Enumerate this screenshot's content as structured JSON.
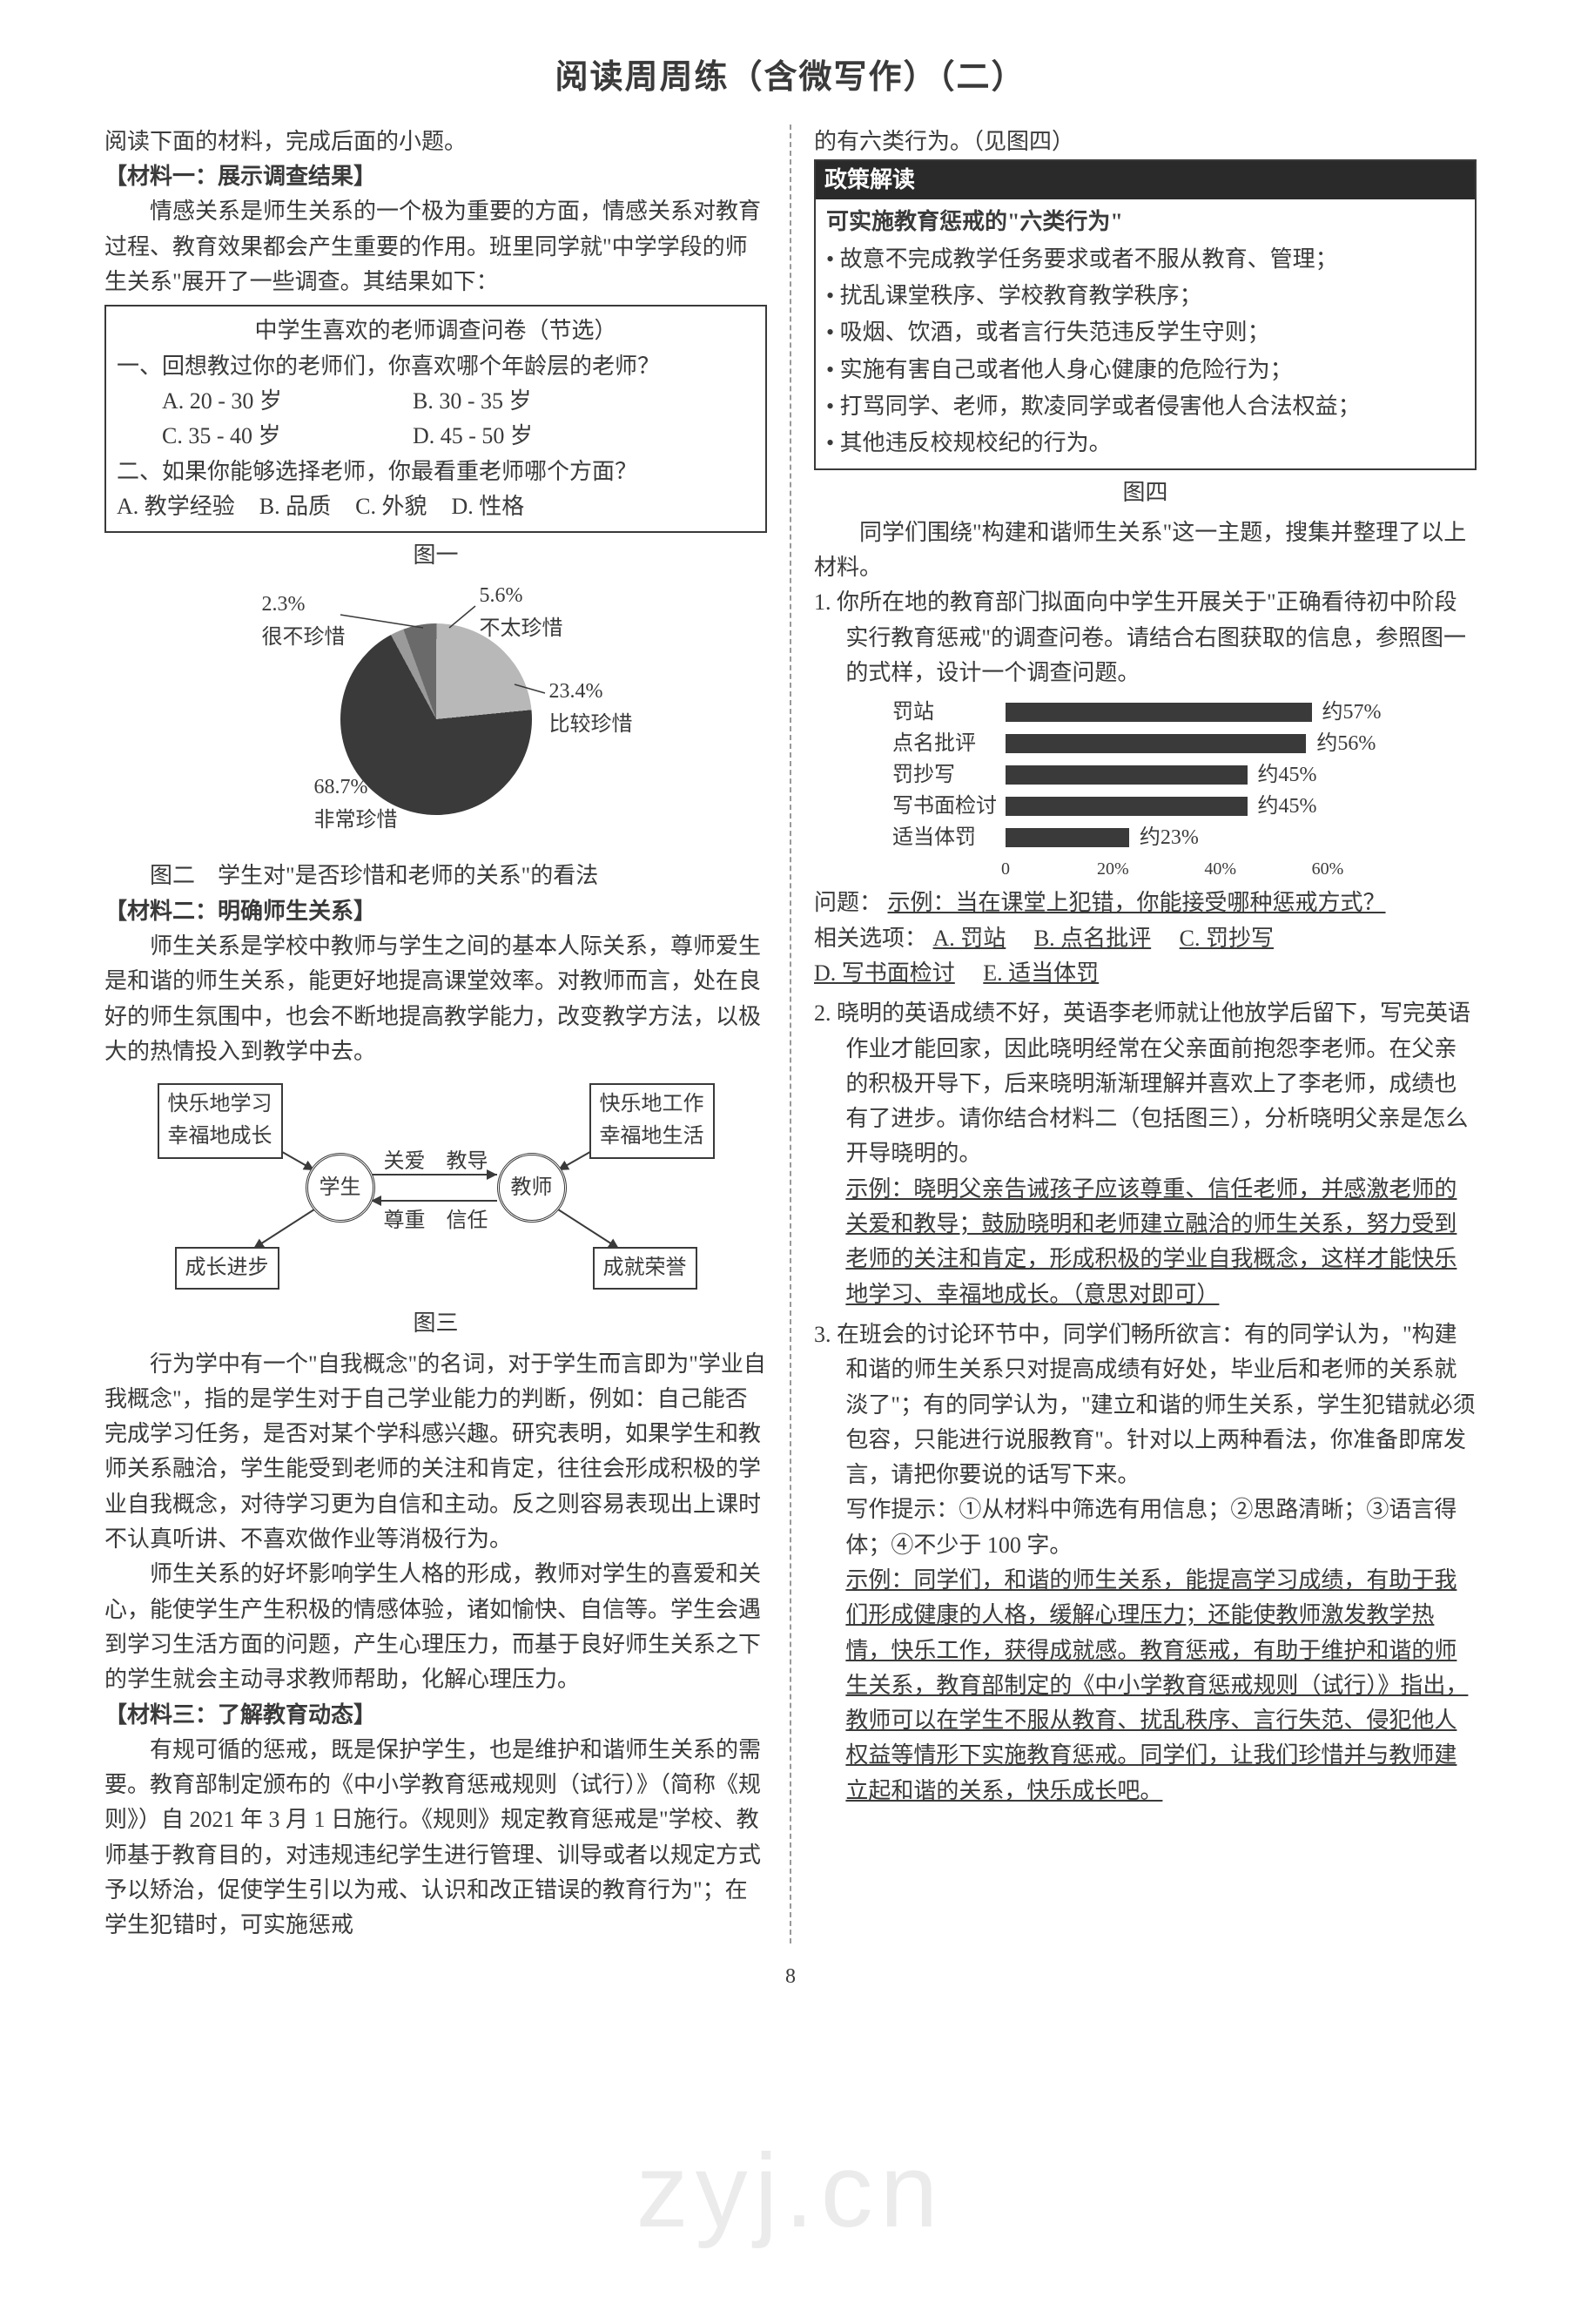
{
  "title": "阅读周周练（含微写作）（二）",
  "intro": "阅读下面的材料，完成后面的小题。",
  "mat1": {
    "head": "【材料一：展示调查结果】",
    "p1": "情感关系是师生关系的一个极为重要的方面，情感关系对教育过程、教育效果都会产生重要的作用。班里同学就\"中学学段的师生关系\"展开了一些调查。其结果如下：",
    "survey_title": "中学生喜欢的老师调查问卷（节选）",
    "q1": "一、回想教过你的老师们，你喜欢哪个年龄层的老师？",
    "q1a": "A. 20 - 30 岁",
    "q1b": "B. 30 - 35 岁",
    "q1c": "C. 35 - 40 岁",
    "q1d": "D. 45 - 50 岁",
    "q2": "二、如果你能够选择老师，你最看重老师哪个方面？",
    "q2a": "A. 教学经验",
    "q2b": "B. 品质",
    "q2c": "C. 外貌",
    "q2d": "D. 性格",
    "fig1": "图一",
    "pie": {
      "title_fontsize": 24,
      "slices": [
        {
          "label": "5.6%\n不太珍惜",
          "value": 5.6,
          "color": "#6a6a6a"
        },
        {
          "label": "23.4%\n比较珍惜",
          "value": 23.4,
          "color": "#b8b8b8"
        },
        {
          "label": "68.7%\n非常珍惜",
          "value": 68.7,
          "color": "#3a3a3a"
        },
        {
          "label": "2.3%\n很不珍惜",
          "value": 2.3,
          "color": "#9a9a9a"
        }
      ],
      "bg": "#ffffff"
    },
    "fig2": "图二　学生对\"是否珍惜和老师的关系\"的看法"
  },
  "mat2": {
    "head": "【材料二：明确师生关系】",
    "p1": "师生关系是学校中教师与学生之间的基本人际关系，尊师爱生是和谐的师生关系，能更好地提高课堂效率。对教师而言，处在良好的师生氛围中，也会不断地提高教学能力，改变教学方法，以极大的热情投入到教学中去。",
    "flow": {
      "tl": "快乐地学习\n幸福地成长",
      "tr": "快乐地工作\n幸福地生活",
      "bl": "成长进步",
      "br": "成就荣誉",
      "left_circ": "学生",
      "right_circ": "教师",
      "top_rel": "关爱　教导",
      "bot_rel": "尊重　信任"
    },
    "fig3": "图三",
    "p2": "行为学中有一个\"自我概念\"的名词，对于学生而言即为\"学业自我概念\"，指的是学生对于自己学业能力的判断，例如：自己能否完成学习任务，是否对某个学科感兴趣。研究表明，如果学生和教师关系融洽，学生能受到老师的关注和肯定，往往会形成积极的学业自我概念，对待学习更为自信和主动。反之则容易表现出上课时不认真听讲、不喜欢做作业等消极行为。",
    "p3": "师生关系的好坏影响学生人格的形成，教师对学生的喜爱和关心，能使学生产生积极的情感体验，诸如愉快、自信等。学生会遇到学习生活方面的问题，产生心理压力，而基于良好师生关系之下的学生就会主动寻求教师帮助，化解心理压力。"
  },
  "mat3": {
    "head": "【材料三：了解教育动态】",
    "p1": "有规可循的惩戒，既是保护学生，也是维护和谐师生关系的需要。教育部制定颁布的《中小学教育惩戒规则（试行）》（简称《规则》）自 2021 年 3 月 1 日施行。《规则》规定教育惩戒是\"学校、教师基于教育目的，对违规违纪学生进行管理、训导或者以规定方式予以矫治，促使学生引以为戒、认识和改正错误的教育行为\"；在学生犯错时，可实施惩戒",
    "cont": "的有六类行为。（见图四）",
    "policy_header": "政策解读",
    "policy_sub": "可实施教育惩戒的\"六类行为\"",
    "bullets": [
      "故意不完成教学任务要求或者不服从教育、管理；",
      "扰乱课堂秩序、学校教育教学秩序；",
      "吸烟、饮酒，或者言行失范违反学生守则；",
      "实施有害自己或者他人身心健康的危险行为；",
      "打骂同学、老师，欺凌同学或者侵害他人合法权益；",
      "其他违反校规校纪的行为。"
    ],
    "fig4": "图四"
  },
  "tasks_intro": "同学们围绕\"构建和谐师生关系\"这一主题，搜集并整理了以上材料。",
  "q1": {
    "text": "1. 你所在地的教育部门拟面向中学生开展关于\"正确看待初中阶段实行教育惩戒\"的调查问卷。请结合右图获取的信息，参照图一的式样，设计一个调查问题。",
    "chart": {
      "type": "horizontal_bar",
      "categories": [
        "罚站",
        "点名批评",
        "罚抄写",
        "写书面检讨",
        "适当体罚"
      ],
      "values": [
        57,
        56,
        45,
        45,
        23
      ],
      "value_labels": [
        "约57%",
        "约56%",
        "约45%",
        "约45%",
        "约23%"
      ],
      "bar_color": "#3a3a3a",
      "xlim": [
        0,
        60
      ],
      "xtick_labels": [
        "0",
        "20%",
        "40%",
        "60%"
      ],
      "xtick_values": [
        0,
        20,
        40,
        60
      ],
      "label_fontsize": 24,
      "bg": "#ffffff"
    },
    "blank_label": "问题：",
    "example": "示例：当在课堂上犯错，你能接受哪种惩戒方式？",
    "opts_label": "相关选项：",
    "opts": {
      "a": "A. 罚站",
      "b": "B. 点名批评",
      "c": "C. 罚抄写",
      "d": "D. 写书面检讨",
      "e": "E. 适当体罚"
    }
  },
  "q2": {
    "text": "2. 晓明的英语成绩不好，英语李老师就让他放学后留下，写完英语作业才能回家，因此晓明经常在父亲面前抱怨李老师。在父亲的积极开导下，后来晓明渐渐理解并喜欢上了李老师，成绩也有了进步。请你结合材料二（包括图三），分析晓明父亲是怎么开导晓明的。",
    "ans": "示例：晓明父亲告诫孩子应该尊重、信任老师，并感激老师的关爱和教导；鼓励晓明和老师建立融洽的师生关系，努力受到老师的关注和肯定，形成积极的学业自我概念，这样才能快乐地学习、幸福地成长。（意思对即可）"
  },
  "q3": {
    "text": "3. 在班会的讨论环节中，同学们畅所欲言：有的同学认为，\"构建和谐的师生关系只对提高成绩有好处，毕业后和老师的关系就淡了\"；有的同学认为，\"建立和谐的师生关系，学生犯错就必须包容，只能进行说服教育\"。针对以上两种看法，你准备即席发言，请把你要说的话写下来。",
    "hint": "写作提示：①从材料中筛选有用信息；②思路清晰；③语言得体；④不少于 100 字。",
    "ans": "示例：同学们，和谐的师生关系，能提高学习成绩，有助于我们形成健康的人格，缓解心理压力；还能使教师激发教学热情，快乐工作，获得成就感。教育惩戒，有助于维护和谐的师生关系，教育部制定的《中小学教育惩戒规则（试行）》指出，教师可以在学生不服从教育、扰乱秩序、言行失范、侵犯他人权益等情形下实施教育惩戒。同学们，让我们珍惜并与教师建立起和谐的关系，快乐成长吧。"
  },
  "page_num": "8",
  "watermark": "zyj.cn"
}
